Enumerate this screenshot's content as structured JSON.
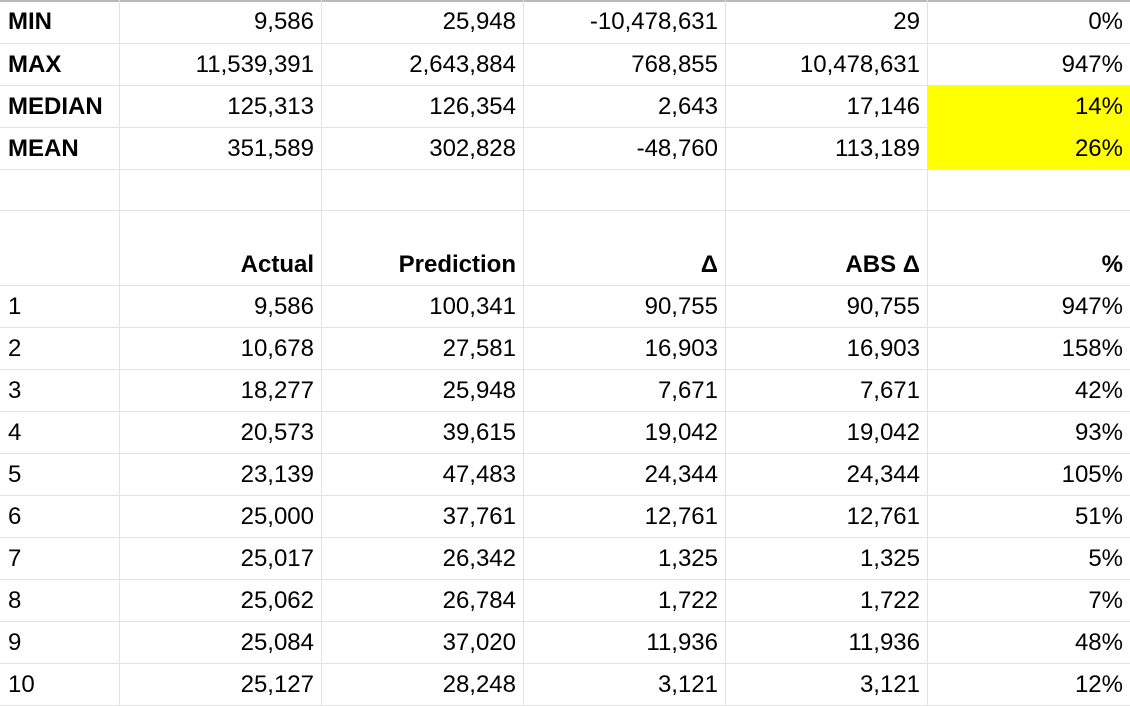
{
  "summary_rows": [
    {
      "label": "MIN",
      "actual": "9,586",
      "prediction": "25,948",
      "delta": "-10,478,631",
      "abs_delta": "29",
      "pct": "0%"
    },
    {
      "label": "MAX",
      "actual": "11,539,391",
      "prediction": "2,643,884",
      "delta": "768,855",
      "abs_delta": "10,478,631",
      "pct": "947%"
    },
    {
      "label": "MEDIAN",
      "actual": "125,313",
      "prediction": "126,354",
      "delta": "2,643",
      "abs_delta": "17,146",
      "pct": "14%"
    },
    {
      "label": "MEAN",
      "actual": "351,589",
      "prediction": "302,828",
      "delta": "-48,760",
      "abs_delta": "113,189",
      "pct": "26%"
    }
  ],
  "highlight_color": "#ffff00",
  "headers": {
    "actual": "Actual",
    "prediction": "Prediction",
    "delta": "Δ",
    "abs_delta": "ABS Δ",
    "pct": "%"
  },
  "data_rows": [
    {
      "n": "1",
      "actual": "9,586",
      "prediction": "100,341",
      "delta": "90,755",
      "abs_delta": "90,755",
      "pct": "947%"
    },
    {
      "n": "2",
      "actual": "10,678",
      "prediction": "27,581",
      "delta": "16,903",
      "abs_delta": "16,903",
      "pct": "158%"
    },
    {
      "n": "3",
      "actual": "18,277",
      "prediction": "25,948",
      "delta": "7,671",
      "abs_delta": "7,671",
      "pct": "42%"
    },
    {
      "n": "4",
      "actual": "20,573",
      "prediction": "39,615",
      "delta": "19,042",
      "abs_delta": "19,042",
      "pct": "93%"
    },
    {
      "n": "5",
      "actual": "23,139",
      "prediction": "47,483",
      "delta": "24,344",
      "abs_delta": "24,344",
      "pct": "105%"
    },
    {
      "n": "6",
      "actual": "25,000",
      "prediction": "37,761",
      "delta": "12,761",
      "abs_delta": "12,761",
      "pct": "51%"
    },
    {
      "n": "7",
      "actual": "25,017",
      "prediction": "26,342",
      "delta": "1,325",
      "abs_delta": "1,325",
      "pct": "5%"
    },
    {
      "n": "8",
      "actual": "25,062",
      "prediction": "26,784",
      "delta": "1,722",
      "abs_delta": "1,722",
      "pct": "7%"
    },
    {
      "n": "9",
      "actual": "25,084",
      "prediction": "37,020",
      "delta": "11,936",
      "abs_delta": "11,936",
      "pct": "48%"
    },
    {
      "n": "10",
      "actual": "25,127",
      "prediction": "28,248",
      "delta": "3,121",
      "abs_delta": "3,121",
      "pct": "12%"
    }
  ]
}
